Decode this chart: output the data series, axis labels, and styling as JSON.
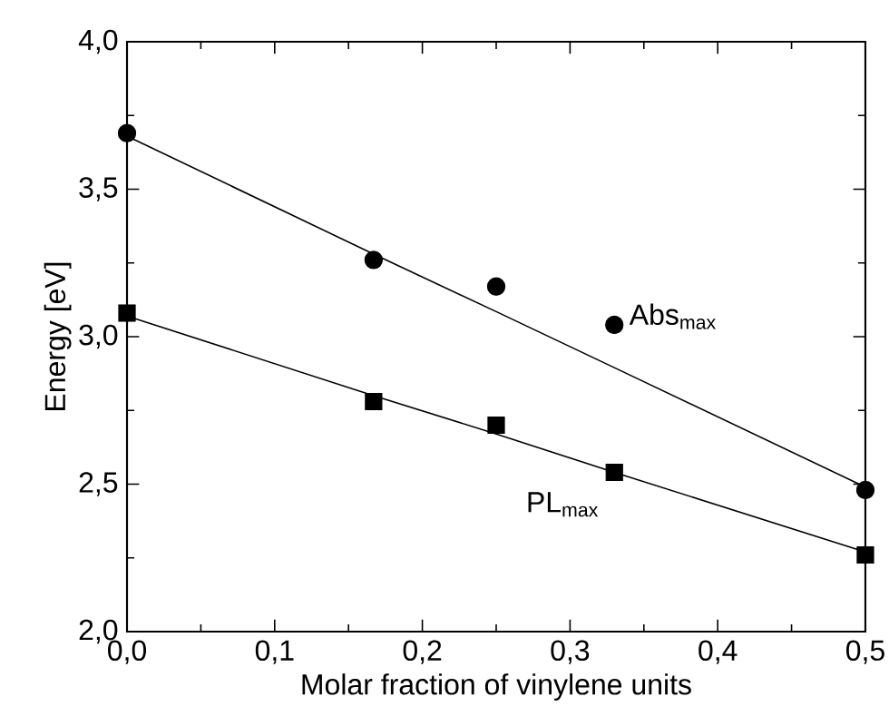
{
  "chart_data": {
    "type": "scatter",
    "xlabel": "Molar fraction of vinylene units",
    "ylabel": "Energy [eV]",
    "xlim": [
      0,
      0.5
    ],
    "ylim": [
      2,
      4
    ],
    "xticks": [
      {
        "value": 0,
        "label": "0,0"
      },
      {
        "value": 0.1,
        "label": "0,1"
      },
      {
        "value": 0.2,
        "label": "0,2"
      },
      {
        "value": 0.3,
        "label": "0,3"
      },
      {
        "value": 0.4,
        "label": "0,4"
      },
      {
        "value": 0.5,
        "label": "0,5"
      }
    ],
    "yticks": [
      {
        "value": 2,
        "label": "2,0"
      },
      {
        "value": 2.5,
        "label": "2,5"
      },
      {
        "value": 3,
        "label": "3,0"
      },
      {
        "value": 3.5,
        "label": "3,5"
      },
      {
        "value": 4,
        "label": "4,0"
      }
    ],
    "x": [
      0,
      0.167,
      0.25,
      0.33,
      0.5
    ],
    "series": [
      {
        "name": "Abs$_{max}$",
        "marker": "circle",
        "color": "#000000",
        "values": [
          3.69,
          3.26,
          3.17,
          3.04,
          2.48
        ]
      },
      {
        "name": "PL$_{max}$",
        "marker": "square",
        "color": "#000000",
        "values": [
          3.08,
          2.78,
          2.7,
          2.54,
          2.26
        ]
      },
      {
        "type": "line",
        "marker": "none",
        "line_style": "solid",
        "color": "#000000",
        "values": [
          3.68,
          3.28,
          3.085,
          2.895,
          2.49
        ]
      },
      {
        "type": "line",
        "marker": "none",
        "line_style": "solid",
        "color": "#000000",
        "values": [
          3.07,
          2.8,
          2.67,
          2.54,
          2.27
        ]
      }
    ],
    "grid": false,
    "legend": false
  }
}
